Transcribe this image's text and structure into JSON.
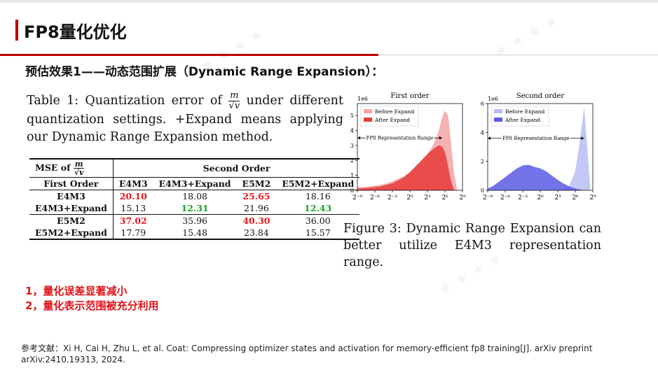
{
  "slide": {
    "title": "FP8量化优化",
    "section_heading": "预估效果1——动态范围扩展（Dynamic Range Expansion）："
  },
  "table": {
    "caption_prefix": "Table 1:  Quantization error of",
    "frac_num": "m",
    "frac_den": "√v",
    "caption_suffix": "under different quantization settings.  +Expand means applying our Dynamic Range Expansion method.",
    "corner_label": "MSE of",
    "group_header": "Second Order",
    "first_order_label": "First Order",
    "columns": [
      "E4M3",
      "E4M3+Expand",
      "E5M2",
      "E5M2+Expand"
    ],
    "rows": [
      {
        "label": "E4M3",
        "values": [
          "20.10",
          "18.08",
          "25.65",
          "18.16"
        ]
      },
      {
        "label": "E4M3+Expand",
        "values": [
          "15.13",
          "12.31",
          "21.96",
          "12.43"
        ]
      },
      {
        "label": "E5M2",
        "values": [
          "37.02",
          "35.96",
          "40.30",
          "36.00"
        ]
      },
      {
        "label": "E5M2+Expand",
        "values": [
          "17.79",
          "15.48",
          "23.84",
          "15.57"
        ]
      }
    ]
  },
  "colors": {
    "accent_red": "#c00000",
    "highlight_red": "#e8161b",
    "highlight_green": "#1fa12a",
    "first_before": "#f5a5a5",
    "first_after": "#e83a3a",
    "second_before": "#b9bdf2",
    "second_after": "#5a5ae6"
  },
  "chart_data": [
    {
      "type": "area",
      "title": "First order",
      "y_multiplier": "1e6",
      "x_tick_labels": [
        "2⁻⁹",
        "2⁻⁶",
        "2⁻³",
        "2⁰",
        "2³",
        "2⁶",
        "2⁹"
      ],
      "x": [
        -9,
        -6,
        -3,
        0,
        3,
        6,
        9
      ],
      "xlim": [
        -9,
        9
      ],
      "y_ticks": [
        "0",
        "1",
        "2",
        "3",
        "4",
        "5"
      ],
      "ylim": [
        0,
        5.8
      ],
      "annotation": "FP8 Representation Range",
      "annotation_span": [
        -9,
        5.5
      ],
      "legend_position": "top-left",
      "series": [
        {
          "name": "Before Expand",
          "x": [
            -9,
            -8,
            -7,
            -6,
            -5,
            -4,
            -3,
            -2,
            -1,
            0,
            1,
            2,
            3,
            4,
            5,
            5.5,
            6,
            6.5,
            7,
            7.5,
            8
          ],
          "values": [
            0.2,
            0.2,
            0.25,
            0.3,
            0.35,
            0.45,
            0.6,
            0.75,
            0.95,
            1.2,
            1.5,
            1.9,
            2.4,
            3.0,
            4.0,
            4.8,
            5.3,
            5.0,
            3.2,
            1.2,
            0.1
          ]
        },
        {
          "name": "After Expand",
          "x": [
            -9,
            -7,
            -5,
            -3,
            -1,
            0,
            1,
            2,
            3,
            4,
            5,
            5.5,
            6,
            6.5,
            7,
            7.5
          ],
          "values": [
            0.1,
            0.15,
            0.25,
            0.45,
            0.85,
            1.2,
            1.6,
            2.0,
            2.4,
            2.75,
            3.0,
            2.9,
            2.5,
            1.6,
            0.6,
            0.05
          ]
        }
      ]
    },
    {
      "type": "area",
      "title": "Second order",
      "y_multiplier": "1e6",
      "x_tick_labels": [
        "2⁻⁹",
        "2⁻⁶",
        "2⁻³",
        "2⁰",
        "2³",
        "2⁶",
        "2⁹"
      ],
      "x": [
        -9,
        -6,
        -3,
        0,
        3,
        6,
        9
      ],
      "xlim": [
        -9,
        9
      ],
      "y_ticks": [
        "0",
        "2",
        "4",
        "6"
      ],
      "ylim": [
        0,
        6
      ],
      "annotation": "FP8 Representation Range",
      "annotation_span": [
        -9,
        7.5
      ],
      "legend_position": "top-left",
      "series": [
        {
          "name": "Before Expand",
          "x": [
            -9,
            -6,
            -3,
            0,
            3,
            4,
            5,
            6,
            6.5,
            7,
            7.5,
            8,
            8.5
          ],
          "values": [
            0,
            0,
            0,
            0,
            0.02,
            0.05,
            0.3,
            1.3,
            2.5,
            4.0,
            5.6,
            3.0,
            0.2
          ]
        },
        {
          "name": "After Expand",
          "x": [
            -9,
            -8,
            -7,
            -6,
            -5,
            -4,
            -3,
            -2,
            -1,
            0,
            1,
            2,
            3,
            4,
            5,
            6,
            7
          ],
          "values": [
            0.1,
            0.3,
            0.6,
            0.9,
            1.2,
            1.5,
            1.7,
            1.75,
            1.6,
            1.5,
            1.3,
            1.0,
            0.7,
            0.45,
            0.25,
            0.1,
            0.02
          ]
        }
      ]
    }
  ],
  "figure": {
    "caption": "Figure 3:  Dynamic Range Expansion can better utilize E4M3 representation range."
  },
  "conclusions": [
    "1，量化误差显著减小",
    "2，量化表示范围被充分利用"
  ],
  "reference": "参考文献：Xi H, Cai H, Zhu L, et al. Coat: Compressing optimizer states and activation for memory-efficient fp8 training[J]. arXiv preprint arXiv:2410.19313, 2024."
}
